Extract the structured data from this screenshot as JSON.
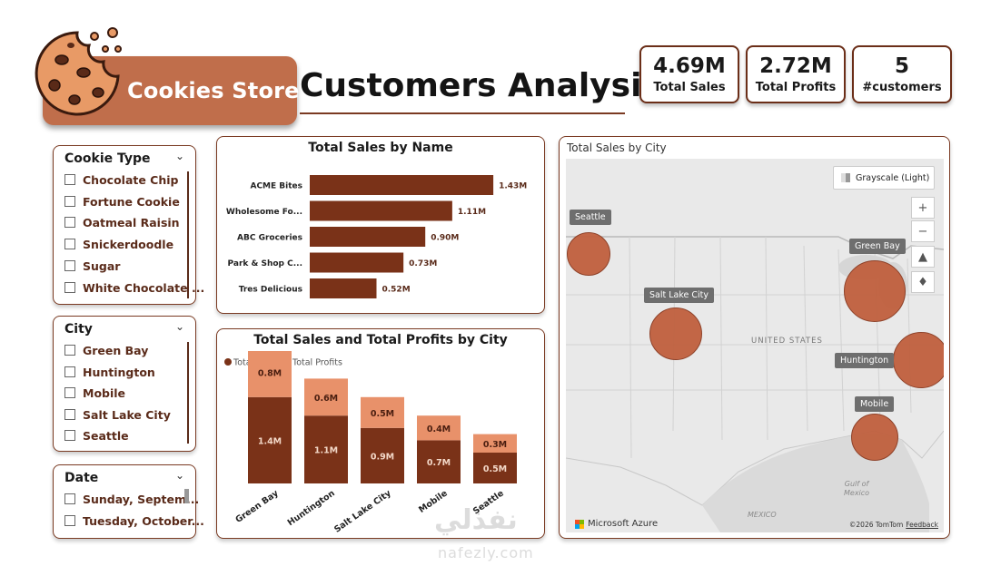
{
  "header": {
    "store_name": "Cookies Store",
    "title": "Customers Analysis"
  },
  "kpis": [
    {
      "value": "4.69M",
      "label": "Total Sales"
    },
    {
      "value": "2.72M",
      "label": "Total Profits"
    },
    {
      "value": "5",
      "label": "#customers"
    }
  ],
  "slicers": {
    "cookie_type": {
      "title": "Cookie Type",
      "items": [
        "Chocolate Chip",
        "Fortune Cookie",
        "Oatmeal Raisin",
        "Snickerdoodle",
        "Sugar",
        "White Chocolate ..."
      ]
    },
    "city": {
      "title": "City",
      "items": [
        "Green Bay",
        "Huntington",
        "Mobile",
        "Salt Lake City",
        "Seattle"
      ]
    },
    "date": {
      "title": "Date",
      "items": [
        "Sunday, Septem...",
        "Tuesday, October..."
      ]
    }
  },
  "chart_data": [
    {
      "type": "bar",
      "orientation": "horizontal",
      "title": "Total Sales by Name",
      "categories": [
        "ACME Bites",
        "Wholesome Fo...",
        "ABC Groceries",
        "Park & Shop C...",
        "Tres Delicious"
      ],
      "values": [
        1.43,
        1.11,
        0.9,
        0.73,
        0.52
      ],
      "data_labels": [
        "1.43M",
        "1.11M",
        "0.90M",
        "0.73M",
        "0.52M"
      ],
      "color": "#7a3218"
    },
    {
      "type": "bar",
      "stacked": true,
      "title": "Total Sales and Total Profits by City",
      "categories": [
        "Green Bay",
        "Huntington",
        "Salt Lake City",
        "Mobile",
        "Seattle"
      ],
      "series": [
        {
          "name": "Total Sales",
          "values": [
            1.4,
            1.1,
            0.9,
            0.7,
            0.5
          ],
          "labels": [
            "1.4M",
            "1.1M",
            "0.9M",
            "0.7M",
            "0.5M"
          ],
          "color": "#7a3218"
        },
        {
          "name": "Total Profits",
          "values": [
            0.8,
            0.6,
            0.5,
            0.4,
            0.3
          ],
          "labels": [
            "0.8M",
            "0.6M",
            "0.5M",
            "0.4M",
            "0.3M"
          ],
          "color": "#e8916a"
        }
      ],
      "legend": "top-left"
    }
  ],
  "map": {
    "title": "Total Sales by City",
    "style_label": "Grayscale (Light)",
    "country_label": "UNITED STATES",
    "sea_labels": [
      "Gulf of\nMexico",
      "MEXICO"
    ],
    "attribution": "Microsoft Azure",
    "copyright": "©2026 TomTom",
    "feedback": "Feedback",
    "cities": [
      {
        "name": "Seattle",
        "sales": 0.52
      },
      {
        "name": "Salt Lake City",
        "sales": 0.9
      },
      {
        "name": "Green Bay",
        "sales": 1.43
      },
      {
        "name": "Huntington",
        "sales": 1.11
      },
      {
        "name": "Mobile",
        "sales": 0.73
      }
    ],
    "bubble_color": "#c0603e"
  },
  "watermark": {
    "arabic": "نفذلي",
    "latin": "nafezly.com"
  }
}
